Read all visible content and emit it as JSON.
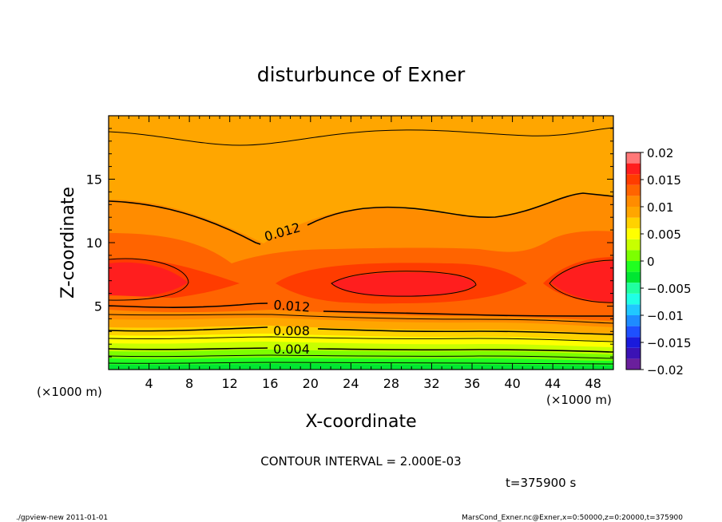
{
  "chart_data": {
    "type": "heatmap",
    "title": "disturbunce of Exner",
    "xlabel": "X-coordinate",
    "ylabel": "Z-coordinate",
    "x_unit_left": "(×1000 m)",
    "x_unit_right": "(×1000 m)",
    "xlim": [
      0,
      50
    ],
    "ylim": [
      0,
      20
    ],
    "x_ticks": [
      "4",
      "8",
      "12",
      "16",
      "20",
      "24",
      "28",
      "32",
      "36",
      "40",
      "44",
      "48"
    ],
    "y_ticks": [
      "5",
      "10",
      "15"
    ],
    "colorbar": {
      "ticks": [
        "0.02",
        "0.015",
        "0.01",
        "0.005",
        "0",
        "−0.005",
        "−0.01",
        "−0.015",
        "−0.02"
      ],
      "levels": [
        -0.02,
        -0.018,
        -0.016,
        -0.014,
        -0.012,
        -0.01,
        -0.008,
        -0.006,
        -0.004,
        -0.002,
        0,
        0.002,
        0.004,
        0.006,
        0.008,
        0.01,
        0.012,
        0.014,
        0.016,
        0.018,
        0.02
      ],
      "colors": [
        "#6a1f9c",
        "#3b12b5",
        "#1a1adc",
        "#1e50ff",
        "#1e8cff",
        "#20c8ff",
        "#20ffe6",
        "#20ffa0",
        "#00e632",
        "#20ff20",
        "#7cff00",
        "#c8ff00",
        "#ffff00",
        "#ffd200",
        "#ffa600",
        "#ff8c00",
        "#ff6400",
        "#ff3c00",
        "#ff1e1e",
        "#ff7878"
      ]
    },
    "contour_labels": [
      "0.012",
      "0.012",
      "0.008",
      "0.004"
    ],
    "contour_interval": "CONTOUR INTERVAL = 2.000E-03",
    "time_label": "t=375900 s",
    "footer_left": "./gpview-new  2011-01-01",
    "footer_right": "MarsCond_Exner.nc@Exner,x=0:50000,z=0:20000,t=375900"
  }
}
